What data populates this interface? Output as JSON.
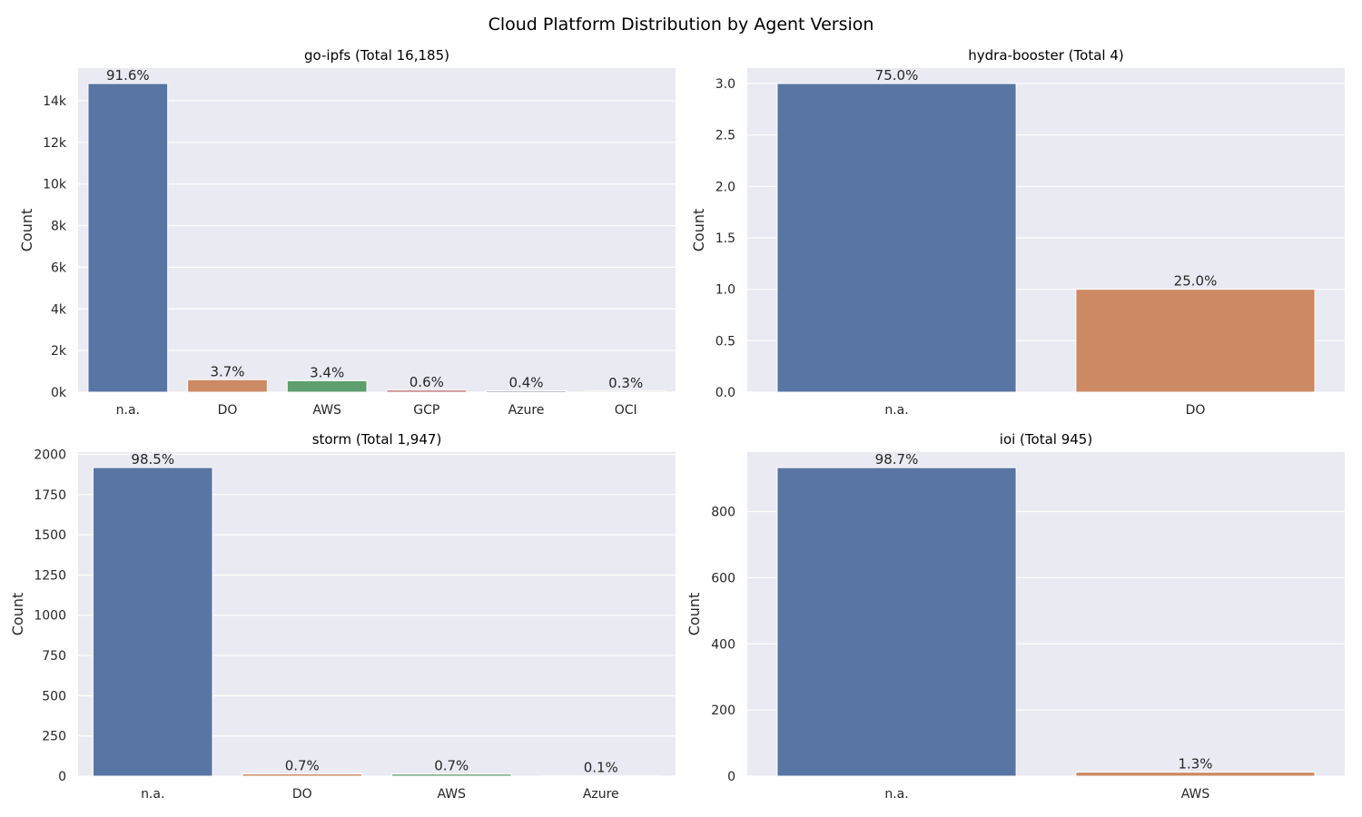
{
  "figure_title": "Cloud Platform Distribution by Agent Version",
  "colors": {
    "panel_bg": "#eaeaf2",
    "grid": "#ffffff",
    "palette": [
      "#5875a4",
      "#cc8963",
      "#5f9e6e",
      "#b55d60",
      "#857aab",
      "#8d7866"
    ]
  },
  "chart_data": [
    {
      "type": "bar",
      "title": "go-ipfs (Total 16,185)",
      "xlabel": "",
      "ylabel": "Count",
      "categories": [
        "n.a.",
        "DO",
        "AWS",
        "GCP",
        "Azure",
        "OCI"
      ],
      "values": [
        14826,
        599,
        550,
        97,
        65,
        48
      ],
      "labels": [
        "91.6%",
        "3.7%",
        "3.4%",
        "0.6%",
        "0.4%",
        "0.3%"
      ],
      "ylim": [
        0,
        15567
      ],
      "yticks": [
        0,
        2000,
        4000,
        6000,
        8000,
        10000,
        12000,
        14000
      ],
      "ytick_labels": [
        "0k",
        "2k",
        "4k",
        "6k",
        "8k",
        "10k",
        "12k",
        "14k"
      ],
      "grid": true
    },
    {
      "type": "bar",
      "title": "hydra-booster (Total 4)",
      "xlabel": "",
      "ylabel": "Count",
      "categories": [
        "n.a.",
        "DO"
      ],
      "values": [
        3,
        1
      ],
      "labels": [
        "75.0%",
        "25.0%"
      ],
      "ylim": [
        0,
        3.15
      ],
      "yticks": [
        0,
        0.5,
        1.0,
        1.5,
        2.0,
        2.5,
        3.0
      ],
      "ytick_labels": [
        "0.0",
        "0.5",
        "1.0",
        "1.5",
        "2.0",
        "2.5",
        "3.0"
      ],
      "grid": true
    },
    {
      "type": "bar",
      "title": "storm (Total 1,947)",
      "xlabel": "",
      "ylabel": "Count",
      "categories": [
        "n.a.",
        "DO",
        "AWS",
        "Azure"
      ],
      "values": [
        1918,
        14,
        13,
        2
      ],
      "labels": [
        "98.5%",
        "0.7%",
        "0.7%",
        "0.1%"
      ],
      "ylim": [
        0,
        2014
      ],
      "yticks": [
        0,
        250,
        500,
        750,
        1000,
        1250,
        1500,
        1750,
        2000
      ],
      "ytick_labels": [
        "0",
        "250",
        "500",
        "750",
        "1000",
        "1250",
        "1500",
        "1750",
        "2000"
      ],
      "grid": true
    },
    {
      "type": "bar",
      "title": "ioi (Total 945)",
      "xlabel": "",
      "ylabel": "Count",
      "categories": [
        "n.a.",
        "AWS"
      ],
      "values": [
        933,
        12
      ],
      "labels": [
        "98.7%",
        "1.3%"
      ],
      "ylim": [
        0,
        980
      ],
      "yticks": [
        0,
        200,
        400,
        600,
        800
      ],
      "ytick_labels": [
        "0",
        "200",
        "400",
        "600",
        "800"
      ],
      "grid": true
    }
  ]
}
